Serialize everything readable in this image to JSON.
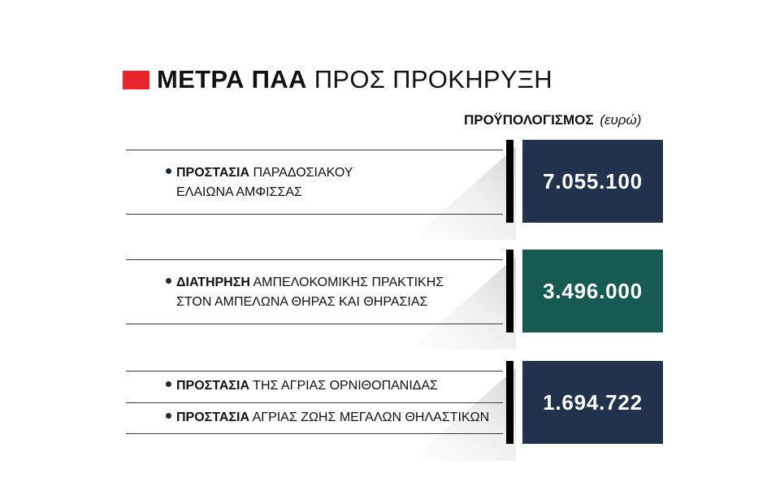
{
  "title": {
    "bold": "ΜΕΤΡΑ ΠΑΑ",
    "rest": "ΠΡΟΣ ΠΡΟΚΗΡΥΞΗ",
    "mark_color": "#e8262b"
  },
  "column_header": {
    "label": "ΠΡΟΫΠΟΛΟΓΙΣΜΟΣ",
    "unit": "(ευρώ)"
  },
  "rows": [
    {
      "items": [
        {
          "keyword": "ΠΡΟΣΤΑΣΙΑ",
          "text": "ΠΑΡΑΔΟΣΙΑΚΟΥ",
          "continuation": "ΕΛΑΙΩΝΑ ΑΜΦΙΣΣΑΣ"
        }
      ],
      "value_label": "7.055.100",
      "color": "#22324c"
    },
    {
      "items": [
        {
          "keyword": "ΔΙΑΤΗΡΗΣΗ",
          "text": "ΑΜΠΕΛΟΚΟΜΙΚΗΣ ΠΡΑΚΤΙΚΗΣ",
          "continuation": "ΣΤΟΝ ΑΜΠΕΛΩΝΑ ΘΗΡΑΣ ΚΑΙ ΘΗΡΑΣΙΑΣ"
        }
      ],
      "value_label": "3.496.000",
      "color": "#175a52"
    },
    {
      "items": [
        {
          "keyword": "ΠΡΟΣΤΑΣΙΑ",
          "text": "ΤΗΣ ΑΓΡΙΑΣ ΟΡΝΙΘΟΠΑΝΙΔΑΣ"
        },
        {
          "keyword": "ΠΡΟΣΤΑΣΙΑ",
          "text": "ΑΓΡΙΑΣ ΖΩΗΣ ΜΕΓΑΛΩΝ ΘΗΛΑΣΤΙΚΩΝ"
        }
      ],
      "value_label": "1.694.722",
      "color": "#22324c"
    }
  ],
  "chart_data": {
    "type": "table",
    "title": "ΜΕΤΡΑ ΠΑΑ ΠΡΟΣ ΠΡΟΚΗΡΥΞΗ",
    "column_header": "ΠΡΟΫΠΟΛΟΓΙΣΜΟΣ (ευρώ)",
    "categories": [
      "ΠΡΟΣΤΑΣΙΑ ΠΑΡΑΔΟΣΙΑΚΟΥ ΕΛΑΙΩΝΑ ΑΜΦΙΣΣΑΣ",
      "ΔΙΑΤΗΡΗΣΗ ΑΜΠΕΛΟΚΟΜΙΚΗΣ ΠΡΑΚΤΙΚΗΣ ΣΤΟΝ ΑΜΠΕΛΩΝΑ ΘΗΡΑΣ ΚΑΙ ΘΗΡΑΣΙΑΣ",
      "ΠΡΟΣΤΑΣΙΑ ΤΗΣ ΑΓΡΙΑΣ ΟΡΝΙΘΟΠΑΝΙΔΑΣ / ΠΡΟΣΤΑΣΙΑ ΑΓΡΙΑΣ ΖΩΗΣ ΜΕΓΑΛΩΝ ΘΗΛΑΣΤΙΚΩΝ"
    ],
    "values": [
      7055100,
      3496000,
      1694722
    ]
  }
}
